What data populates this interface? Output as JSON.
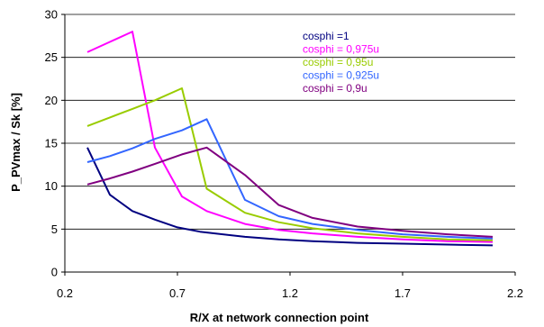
{
  "chart_data": {
    "type": "line",
    "xlabel": "R/X at network connection point",
    "ylabel": "P_PVmax / Sk [%]",
    "xlim": [
      0.2,
      2.2
    ],
    "ylim": [
      0,
      30
    ],
    "xticks": [
      "0.2",
      "0.7",
      "1.2",
      "1.7",
      "2.2"
    ],
    "yticks": [
      "0",
      "5",
      "10",
      "15",
      "20",
      "25",
      "30"
    ],
    "grid": "horizontal",
    "legend": "top-right",
    "series": [
      {
        "name": "cosphi =1",
        "color": "#000080",
        "x": [
          0.3,
          0.4,
          0.5,
          0.6,
          0.7,
          0.8,
          1.0,
          1.15,
          1.3,
          1.5,
          1.7,
          1.9,
          2.1
        ],
        "y": [
          14.5,
          9.0,
          7.1,
          6.1,
          5.2,
          4.7,
          4.1,
          3.8,
          3.6,
          3.4,
          3.3,
          3.2,
          3.1
        ]
      },
      {
        "name": "cosphi = 0,975u",
        "color": "#ff00ff",
        "x": [
          0.3,
          0.4,
          0.5,
          0.6,
          0.72,
          0.83,
          1.0,
          1.15,
          1.3,
          1.5,
          1.7,
          1.9,
          2.1
        ],
        "y": [
          25.6,
          26.8,
          28.0,
          14.5,
          8.8,
          7.1,
          5.6,
          4.9,
          4.5,
          4.1,
          3.8,
          3.6,
          3.5
        ]
      },
      {
        "name": "cosphi = 0,95u",
        "color": "#99cc00",
        "x": [
          0.3,
          0.4,
          0.5,
          0.6,
          0.72,
          0.83,
          1.0,
          1.15,
          1.3,
          1.5,
          1.7,
          1.9,
          2.1
        ],
        "y": [
          17.0,
          18.0,
          19.0,
          20.0,
          21.4,
          9.7,
          6.9,
          5.8,
          5.1,
          4.5,
          4.1,
          3.8,
          3.7
        ]
      },
      {
        "name": "cosphi = 0,925u",
        "color": "#3366ff",
        "x": [
          0.3,
          0.4,
          0.5,
          0.6,
          0.72,
          0.83,
          1.0,
          1.15,
          1.3,
          1.5,
          1.7,
          1.9,
          2.1
        ],
        "y": [
          12.8,
          13.5,
          14.4,
          15.5,
          16.5,
          17.8,
          8.4,
          6.5,
          5.6,
          4.9,
          4.4,
          4.1,
          3.9
        ]
      },
      {
        "name": "cosphi = 0,9u",
        "color": "#800080",
        "x": [
          0.3,
          0.4,
          0.5,
          0.6,
          0.72,
          0.83,
          1.0,
          1.15,
          1.3,
          1.5,
          1.7,
          1.9,
          2.1
        ],
        "y": [
          10.2,
          10.9,
          11.7,
          12.6,
          13.7,
          14.5,
          11.3,
          7.8,
          6.3,
          5.3,
          4.8,
          4.4,
          4.1
        ]
      }
    ]
  }
}
